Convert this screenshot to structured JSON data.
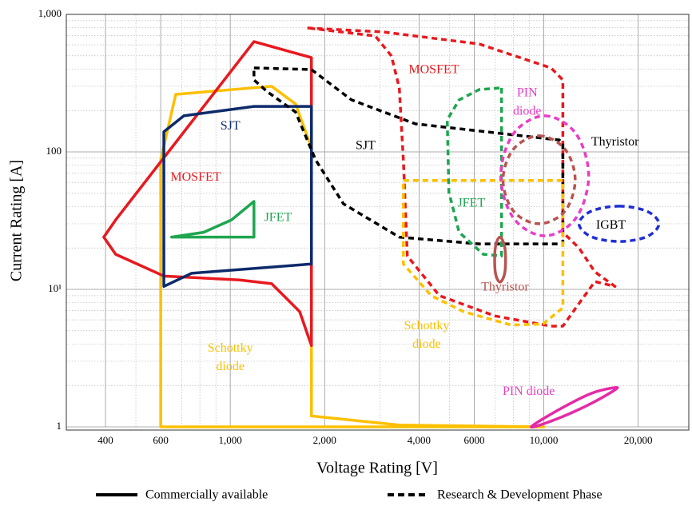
{
  "chart_data": {
    "type": "region",
    "x_label": "Voltage Rating [V]",
    "y_label": "Current Rating [A]",
    "xscale": "log",
    "yscale": "log",
    "xlim": [
      300,
      29000
    ],
    "ylim": [
      1,
      1000
    ],
    "xticks": [
      400,
      600,
      {
        "value": 1000,
        "label": "1,000"
      },
      {
        "value": 2000,
        "label": "2,000"
      },
      {
        "value": 4000,
        "label": "4,000"
      },
      6000,
      {
        "value": 10000,
        "label": "10,000"
      },
      {
        "value": 20000,
        "label": "20,000"
      }
    ],
    "yticks": [
      1,
      {
        "value": 10,
        "label": "10¹"
      },
      100,
      {
        "value": 1000,
        "label": "1,000"
      }
    ],
    "grid": true,
    "minor_grid": true,
    "legend": [
      {
        "label": "Commercially available",
        "dashed": false
      },
      {
        "label": "Research & Development Phase",
        "dashed": true
      }
    ],
    "series": [
      {
        "color": "#fcc000",
        "dashed": false,
        "smooth": false,
        "x": [
          600,
          600,
          670,
          1355,
          1615,
          1815,
          1815,
          3460,
          10000
        ],
        "values": [
          1,
          87.5,
          262,
          300,
          223,
          107,
          1.2,
          1.03,
          1
        ]
      },
      {
        "color": "#e8191e",
        "dashed": false,
        "smooth": false,
        "x": [
          1815,
          1815,
          1664,
          1355,
          1071,
          614,
          431,
          395,
          431,
          1190
        ],
        "values": [
          485,
          3.9,
          6.9,
          11.0,
          11.7,
          12.5,
          18,
          24,
          32,
          634
        ]
      },
      {
        "color": "#0d2a6b",
        "dashed": false,
        "smooth": false,
        "x": [
          614,
          614,
          711,
          1190,
          1815,
          1815,
          753
        ],
        "values": [
          10.5,
          140,
          183,
          214,
          214,
          15.3,
          13.1
        ]
      },
      {
        "color": "#1ea550",
        "dashed": false,
        "smooth": false,
        "x": [
          650,
          1190,
          1190,
          1009,
          822
        ],
        "values": [
          24,
          24,
          43.6,
          32,
          26
        ]
      },
      {
        "color": "#e8191e",
        "dashed": true,
        "smooth": false,
        "x": [
          1762,
          3076,
          6223,
          10540,
          11500,
          11500,
          12950,
          14550,
          16870,
          14550,
          12950,
          11500,
          10540,
          7000,
          4645,
          3670,
          3565,
          3460,
          3265,
          2900
        ],
        "values": [
          797,
          745,
          609,
          408,
          334,
          26,
          20,
          13.4,
          10.5,
          11.4,
          7.9,
          5.4,
          5.4,
          6.4,
          9.0,
          17.5,
          87,
          292,
          499,
          697
        ]
      },
      {
        "color": "#000000",
        "dashed": true,
        "smooth": false,
        "x": [
          1190,
          1815,
          2435,
          3890,
          11200,
          11500,
          11500,
          6223,
          3460,
          2296,
          1871,
          1615,
          1315,
          1190
        ],
        "values": [
          408,
          397,
          239,
          160,
          122,
          115,
          21.4,
          21.4,
          24,
          41.9,
          87.5,
          195,
          273,
          334
        ]
      },
      {
        "color": "#fcc000",
        "dashed": true,
        "smooth": false,
        "x": [
          3565,
          11500,
          11500,
          9950,
          7870,
          5535,
          4375,
          3565
        ],
        "values": [
          62,
          62,
          7.35,
          5.6,
          5.5,
          6.9,
          9.0,
          15.3
        ]
      },
      {
        "color": "#1ea550",
        "dashed": true,
        "smooth": false,
        "x": [
          7330,
          7330,
          6410,
          5370,
          4980,
          4920,
          5370,
          6223
        ],
        "values": [
          292,
          17.5,
          18,
          26,
          51,
          171,
          239,
          284
        ]
      },
      {
        "color": "#b85450",
        "dashed": false,
        "smooth": true,
        "x": [
          7245,
          7515,
          7515,
          7245,
          7000,
          7000
        ],
        "values": [
          24,
          20,
          13.4,
          11.3,
          13.4,
          20
        ]
      },
      {
        "color": "#b85450",
        "dashed": true,
        "smooth": true,
        "x": [
          9660,
          11670,
          12590,
          11670,
          9660,
          8010,
          7410,
          8010
        ],
        "values": [
          131,
          105,
          62.6,
          37,
          30,
          37,
          62.6,
          105
        ]
      },
      {
        "color": "#e83ec8",
        "dashed": true,
        "smooth": true,
        "x": [
          10070,
          12650,
          13900,
          12650,
          10070,
          8010,
          7290,
          8010
        ],
        "values": [
          183,
          136,
          67,
          32.9,
          24.5,
          32.9,
          67,
          136
        ]
      },
      {
        "color": "#1f2ed6",
        "dashed": true,
        "smooth": true,
        "x": [
          17380,
          21330,
          23280,
          21330,
          17380,
          14150,
          12950,
          14150
        ],
        "values": [
          40.3,
          37,
          30,
          24.2,
          22.3,
          24.2,
          30,
          37
        ]
      },
      {
        "color": "#e52aa7",
        "dashed": false,
        "smooth": true,
        "x": [
          9120,
          11210,
          14150,
          16870,
          16680,
          13740,
          10870
        ],
        "values": [
          1.0,
          1.34,
          1.75,
          1.93,
          1.83,
          1.43,
          1.13
        ]
      }
    ],
    "annotations": [
      {
        "lines": [
          "SJT"
        ],
        "x": 1000,
        "y": 153,
        "color": "#0d2a6b"
      },
      {
        "lines": [
          "MOSFET"
        ],
        "x": 776,
        "y": 65,
        "color": "#e8191e"
      },
      {
        "lines": [
          "JFET"
        ],
        "x": 1420,
        "y": 33,
        "color": "#1ea550"
      },
      {
        "lines": [
          "Schottky",
          "diode"
        ],
        "x": 1000,
        "y": 3.16,
        "color": "#fcc000"
      },
      {
        "lines": [
          "SJT"
        ],
        "x": 2700,
        "y": 110,
        "color": "#000000"
      },
      {
        "lines": [
          "MOSFET"
        ],
        "x": 4460,
        "y": 392,
        "color": "#e8191e"
      },
      {
        "lines": [
          "PIN",
          "diode"
        ],
        "x": 8850,
        "y": 229,
        "color": "#e83ec8"
      },
      {
        "lines": [
          "Thyristor"
        ],
        "x": 16870,
        "y": 117,
        "color": "#000000"
      },
      {
        "lines": [
          "JFET"
        ],
        "x": 5870,
        "y": 42,
        "color": "#1ea550"
      },
      {
        "lines": [
          "IGBT"
        ],
        "x": 16370,
        "y": 29,
        "color": "#000000"
      },
      {
        "lines": [
          "Thyristor"
        ],
        "x": 7515,
        "y": 10.3,
        "color": "#b85450"
      },
      {
        "lines": [
          "Schottky",
          "diode"
        ],
        "x": 4230,
        "y": 4.6,
        "color": "#fcc000"
      },
      {
        "lines": [
          "PIN diode"
        ],
        "x": 8950,
        "y": 1.8,
        "color": "#e83ec8"
      }
    ]
  }
}
